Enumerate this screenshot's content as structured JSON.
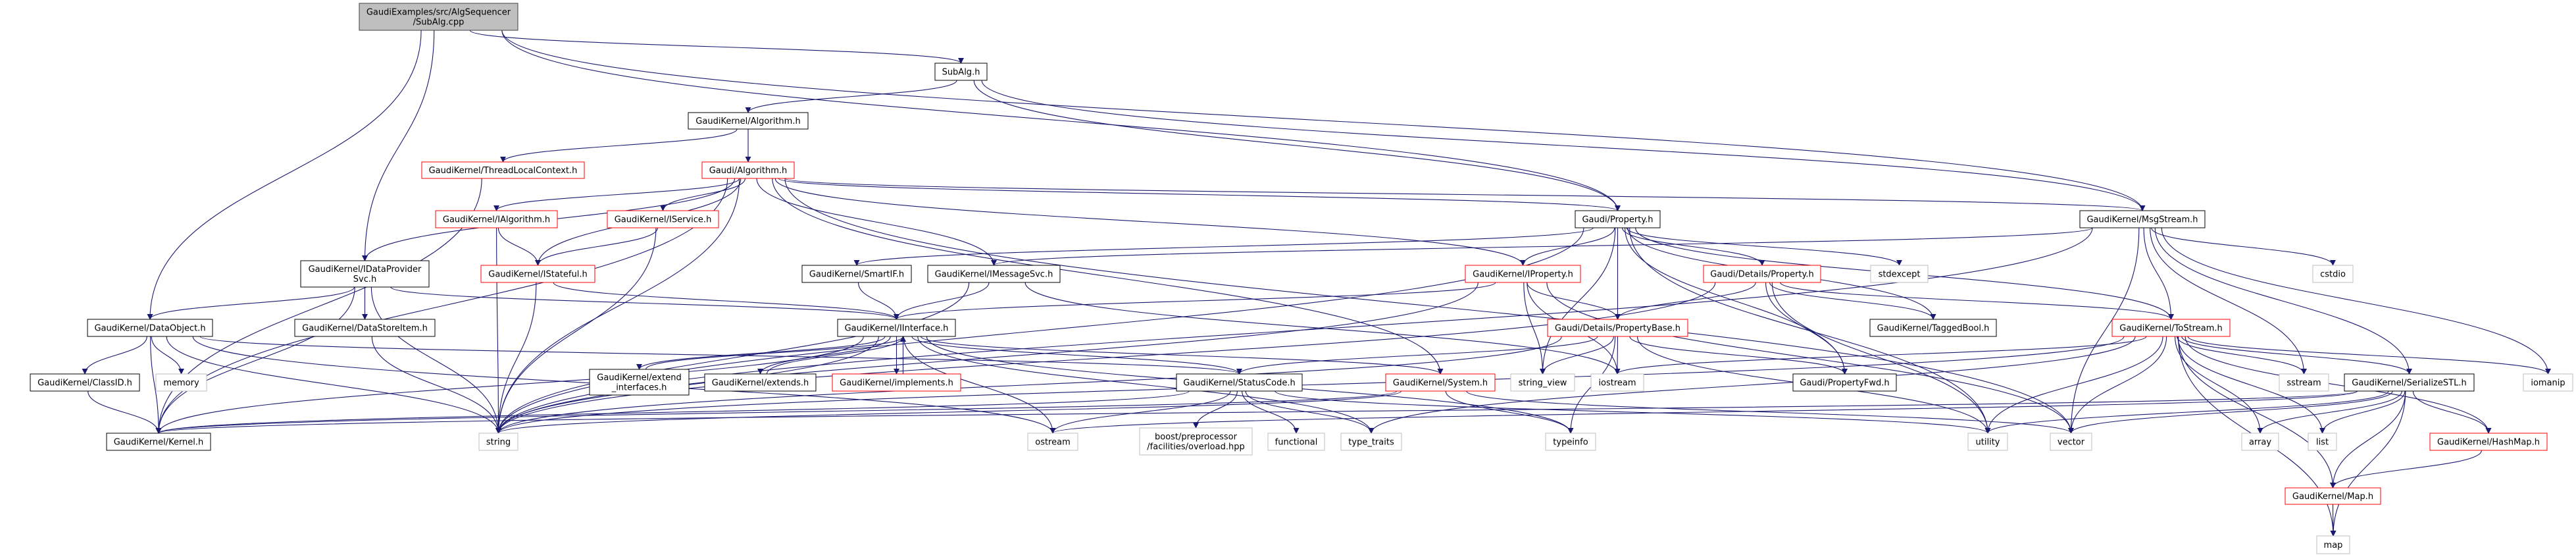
{
  "graph": {
    "colors": {
      "edge": "#191970",
      "root_fill": "#bfbfbf",
      "root_border": "#404040",
      "documented_border": "#000000",
      "truncated_border": "#ff0000",
      "external_border": "#bfbfbf"
    },
    "nodes": [
      {
        "id": "cpp",
        "lines": [
          "GaudiExamples/src/AlgSequencer",
          "/SubAlg.cpp"
        ],
        "kind": "root"
      },
      {
        "id": "subalg_h",
        "lines": [
          "SubAlg.h"
        ],
        "kind": "documented"
      },
      {
        "id": "gk_algorithm",
        "lines": [
          "GaudiKernel/Algorithm.h"
        ],
        "kind": "documented"
      },
      {
        "id": "tlc",
        "lines": [
          "GaudiKernel/ThreadLocalContext.h"
        ],
        "kind": "truncated"
      },
      {
        "id": "gaudi_algorithm",
        "lines": [
          "Gaudi/Algorithm.h"
        ],
        "kind": "truncated"
      },
      {
        "id": "ialgorithm",
        "lines": [
          "GaudiKernel/IAlgorithm.h"
        ],
        "kind": "truncated"
      },
      {
        "id": "iservice",
        "lines": [
          "GaudiKernel/IService.h"
        ],
        "kind": "truncated"
      },
      {
        "id": "property",
        "lines": [
          "Gaudi/Property.h"
        ],
        "kind": "documented"
      },
      {
        "id": "msgstream",
        "lines": [
          "GaudiKernel/MsgStream.h"
        ],
        "kind": "documented"
      },
      {
        "id": "idps",
        "lines": [
          "GaudiKernel/IDataProvider",
          "Svc.h"
        ],
        "kind": "documented"
      },
      {
        "id": "istateful",
        "lines": [
          "GaudiKernel/IStateful.h"
        ],
        "kind": "truncated"
      },
      {
        "id": "smartif",
        "lines": [
          "GaudiKernel/SmartIF.h"
        ],
        "kind": "documented"
      },
      {
        "id": "imessagesvc",
        "lines": [
          "GaudiKernel/IMessageSvc.h"
        ],
        "kind": "documented"
      },
      {
        "id": "iproperty",
        "lines": [
          "GaudiKernel/IProperty.h"
        ],
        "kind": "truncated"
      },
      {
        "id": "dprop",
        "lines": [
          "Gaudi/Details/Property.h"
        ],
        "kind": "truncated"
      },
      {
        "id": "stdexcept",
        "lines": [
          "stdexcept"
        ],
        "kind": "external"
      },
      {
        "id": "cstdio",
        "lines": [
          "cstdio"
        ],
        "kind": "external"
      },
      {
        "id": "dataobject",
        "lines": [
          "GaudiKernel/DataObject.h"
        ],
        "kind": "documented"
      },
      {
        "id": "datastoreitem",
        "lines": [
          "GaudiKernel/DataStoreItem.h"
        ],
        "kind": "documented"
      },
      {
        "id": "iinterface",
        "lines": [
          "GaudiKernel/IInterface.h"
        ],
        "kind": "documented"
      },
      {
        "id": "propertybase",
        "lines": [
          "Gaudi/Details/PropertyBase.h"
        ],
        "kind": "truncated"
      },
      {
        "id": "taggedbool",
        "lines": [
          "GaudiKernel/TaggedBool.h"
        ],
        "kind": "documented"
      },
      {
        "id": "tostream",
        "lines": [
          "GaudiKernel/ToStream.h"
        ],
        "kind": "truncated"
      },
      {
        "id": "classid",
        "lines": [
          "GaudiKernel/ClassID.h"
        ],
        "kind": "documented"
      },
      {
        "id": "memory",
        "lines": [
          "memory"
        ],
        "kind": "external"
      },
      {
        "id": "extend_interfaces",
        "lines": [
          "GaudiKernel/extend",
          "_interfaces.h"
        ],
        "kind": "documented"
      },
      {
        "id": "extends",
        "lines": [
          "GaudiKernel/extends.h"
        ],
        "kind": "documented"
      },
      {
        "id": "implements",
        "lines": [
          "GaudiKernel/implements.h"
        ],
        "kind": "truncated"
      },
      {
        "id": "statuscode",
        "lines": [
          "GaudiKernel/StatusCode.h"
        ],
        "kind": "documented"
      },
      {
        "id": "system",
        "lines": [
          "GaudiKernel/System.h"
        ],
        "kind": "truncated"
      },
      {
        "id": "string_view",
        "lines": [
          "string_view"
        ],
        "kind": "external"
      },
      {
        "id": "iostream",
        "lines": [
          "iostream"
        ],
        "kind": "external"
      },
      {
        "id": "propertyfwd",
        "lines": [
          "Gaudi/PropertyFwd.h"
        ],
        "kind": "documented"
      },
      {
        "id": "sstream",
        "lines": [
          "sstream"
        ],
        "kind": "external"
      },
      {
        "id": "serializestl",
        "lines": [
          "GaudiKernel/SerializeSTL.h"
        ],
        "kind": "documented"
      },
      {
        "id": "iomanip",
        "lines": [
          "iomanip"
        ],
        "kind": "external"
      },
      {
        "id": "kernel",
        "lines": [
          "GaudiKernel/Kernel.h"
        ],
        "kind": "documented"
      },
      {
        "id": "string",
        "lines": [
          "string"
        ],
        "kind": "external"
      },
      {
        "id": "ostream",
        "lines": [
          "ostream"
        ],
        "kind": "external"
      },
      {
        "id": "boost",
        "lines": [
          "boost/preprocessor",
          "/facilities/overload.hpp"
        ],
        "kind": "external"
      },
      {
        "id": "functional",
        "lines": [
          "functional"
        ],
        "kind": "external"
      },
      {
        "id": "type_traits",
        "lines": [
          "type_traits"
        ],
        "kind": "external"
      },
      {
        "id": "typeinfo",
        "lines": [
          "typeinfo"
        ],
        "kind": "external"
      },
      {
        "id": "utility",
        "lines": [
          "utility"
        ],
        "kind": "external"
      },
      {
        "id": "vector",
        "lines": [
          "vector"
        ],
        "kind": "external"
      },
      {
        "id": "array",
        "lines": [
          "array"
        ],
        "kind": "external"
      },
      {
        "id": "list",
        "lines": [
          "list"
        ],
        "kind": "external"
      },
      {
        "id": "hashmap",
        "lines": [
          "GaudiKernel/HashMap.h"
        ],
        "kind": "truncated"
      },
      {
        "id": "mapH",
        "lines": [
          "GaudiKernel/Map.h"
        ],
        "kind": "truncated"
      },
      {
        "id": "map",
        "lines": [
          "map"
        ],
        "kind": "external"
      }
    ],
    "edges": [
      [
        "cpp",
        "dataobject"
      ],
      [
        "cpp",
        "idps"
      ],
      [
        "cpp",
        "subalg_h"
      ],
      [
        "cpp",
        "msgstream"
      ],
      [
        "cpp",
        "property"
      ],
      [
        "subalg_h",
        "gk_algorithm"
      ],
      [
        "subalg_h",
        "property"
      ],
      [
        "subalg_h",
        "msgstream"
      ],
      [
        "gk_algorithm",
        "tlc"
      ],
      [
        "gk_algorithm",
        "gaudi_algorithm"
      ],
      [
        "tlc",
        "kernel"
      ],
      [
        "gaudi_algorithm",
        "ialgorithm"
      ],
      [
        "gaudi_algorithm",
        "iservice"
      ],
      [
        "gaudi_algorithm",
        "istateful"
      ],
      [
        "gaudi_algorithm",
        "idps"
      ],
      [
        "gaudi_algorithm",
        "string"
      ],
      [
        "gaudi_algorithm",
        "kernel"
      ],
      [
        "gaudi_algorithm",
        "imessagesvc"
      ],
      [
        "gaudi_algorithm",
        "system"
      ],
      [
        "gaudi_algorithm",
        "property"
      ],
      [
        "gaudi_algorithm",
        "iproperty"
      ],
      [
        "gaudi_algorithm",
        "msgstream"
      ],
      [
        "gaudi_algorithm",
        "vector"
      ],
      [
        "ialgorithm",
        "istateful"
      ],
      [
        "ialgorithm",
        "string"
      ],
      [
        "iservice",
        "istateful"
      ],
      [
        "iservice",
        "string"
      ],
      [
        "istateful",
        "iinterface"
      ],
      [
        "istateful",
        "string"
      ],
      [
        "idps",
        "dataobject"
      ],
      [
        "idps",
        "datastoreitem"
      ],
      [
        "idps",
        "iinterface"
      ],
      [
        "idps",
        "string"
      ],
      [
        "idps",
        "kernel"
      ],
      [
        "dataobject",
        "classid"
      ],
      [
        "dataobject",
        "memory"
      ],
      [
        "dataobject",
        "kernel"
      ],
      [
        "dataobject",
        "string"
      ],
      [
        "dataobject",
        "ostream"
      ],
      [
        "dataobject",
        "statuscode"
      ],
      [
        "classid",
        "kernel"
      ],
      [
        "datastoreitem",
        "string"
      ],
      [
        "smartif",
        "iinterface"
      ],
      [
        "imessagesvc",
        "iinterface"
      ],
      [
        "imessagesvc",
        "string"
      ],
      [
        "imessagesvc",
        "iostream"
      ],
      [
        "iinterface",
        "extend_interfaces"
      ],
      [
        "iinterface",
        "extends"
      ],
      [
        "iinterface",
        "implements"
      ],
      [
        "iinterface",
        "statuscode"
      ],
      [
        "iinterface",
        "system"
      ],
      [
        "iinterface",
        "kernel"
      ],
      [
        "iinterface",
        "ostream"
      ],
      [
        "iinterface",
        "typeinfo"
      ],
      [
        "iinterface",
        "type_traits"
      ],
      [
        "iinterface",
        "string"
      ],
      [
        "extend_interfaces",
        "iinterface"
      ],
      [
        "extends",
        "iinterface"
      ],
      [
        "implements",
        "iinterface"
      ],
      [
        "statuscode",
        "boost"
      ],
      [
        "statuscode",
        "functional"
      ],
      [
        "statuscode",
        "type_traits"
      ],
      [
        "statuscode",
        "ostream"
      ],
      [
        "statuscode",
        "kernel"
      ],
      [
        "statuscode",
        "utility"
      ],
      [
        "system",
        "kernel"
      ],
      [
        "system",
        "string"
      ],
      [
        "system",
        "typeinfo"
      ],
      [
        "system",
        "vector"
      ],
      [
        "property",
        "iproperty"
      ],
      [
        "property",
        "propertybase"
      ],
      [
        "property",
        "dprop"
      ],
      [
        "property",
        "propertyfwd"
      ],
      [
        "property",
        "taggedbool"
      ],
      [
        "property",
        "stdexcept"
      ],
      [
        "property",
        "tostream"
      ],
      [
        "property",
        "string"
      ],
      [
        "property",
        "string_view"
      ],
      [
        "property",
        "utility"
      ],
      [
        "property",
        "smartif"
      ],
      [
        "iproperty",
        "propertybase"
      ],
      [
        "iproperty",
        "iinterface"
      ],
      [
        "iproperty",
        "string"
      ],
      [
        "iproperty",
        "string_view"
      ],
      [
        "iproperty",
        "iostream"
      ],
      [
        "iproperty",
        "vector"
      ],
      [
        "dprop",
        "propertybase"
      ],
      [
        "dprop",
        "propertyfwd"
      ],
      [
        "dprop",
        "taggedbool"
      ],
      [
        "dprop",
        "tostream"
      ],
      [
        "dprop",
        "utility"
      ],
      [
        "dprop",
        "string"
      ],
      [
        "propertybase",
        "propertyfwd"
      ],
      [
        "propertybase",
        "iostream"
      ],
      [
        "propertybase",
        "string"
      ],
      [
        "propertybase",
        "string_view"
      ],
      [
        "propertybase",
        "statuscode"
      ],
      [
        "propertybase",
        "typeinfo"
      ],
      [
        "propertybase",
        "utility"
      ],
      [
        "msgstream",
        "imessagesvc"
      ],
      [
        "msgstream",
        "tostream"
      ],
      [
        "msgstream",
        "serializestl"
      ],
      [
        "msgstream",
        "sstream"
      ],
      [
        "msgstream",
        "cstdio"
      ],
      [
        "msgstream",
        "iomanip"
      ],
      [
        "msgstream",
        "vector"
      ],
      [
        "msgstream",
        "string"
      ],
      [
        "tostream",
        "serializestl"
      ],
      [
        "tostream",
        "sstream"
      ],
      [
        "tostream",
        "iomanip"
      ],
      [
        "tostream",
        "hashmap"
      ],
      [
        "tostream",
        "mapH"
      ],
      [
        "tostream",
        "map"
      ],
      [
        "tostream",
        "array"
      ],
      [
        "tostream",
        "list"
      ],
      [
        "tostream",
        "iostream"
      ],
      [
        "tostream",
        "string"
      ],
      [
        "tostream",
        "vector"
      ],
      [
        "tostream",
        "utility"
      ],
      [
        "tostream",
        "type_traits"
      ],
      [
        "serializestl",
        "array"
      ],
      [
        "serializestl",
        "list"
      ],
      [
        "serializestl",
        "mapH"
      ],
      [
        "serializestl",
        "hashmap"
      ],
      [
        "serializestl",
        "map"
      ],
      [
        "serializestl",
        "vector"
      ],
      [
        "serializestl",
        "utility"
      ],
      [
        "serializestl",
        "ostream"
      ],
      [
        "serializestl",
        "kernel"
      ],
      [
        "hashmap",
        "mapH"
      ],
      [
        "mapH",
        "map"
      ]
    ]
  }
}
